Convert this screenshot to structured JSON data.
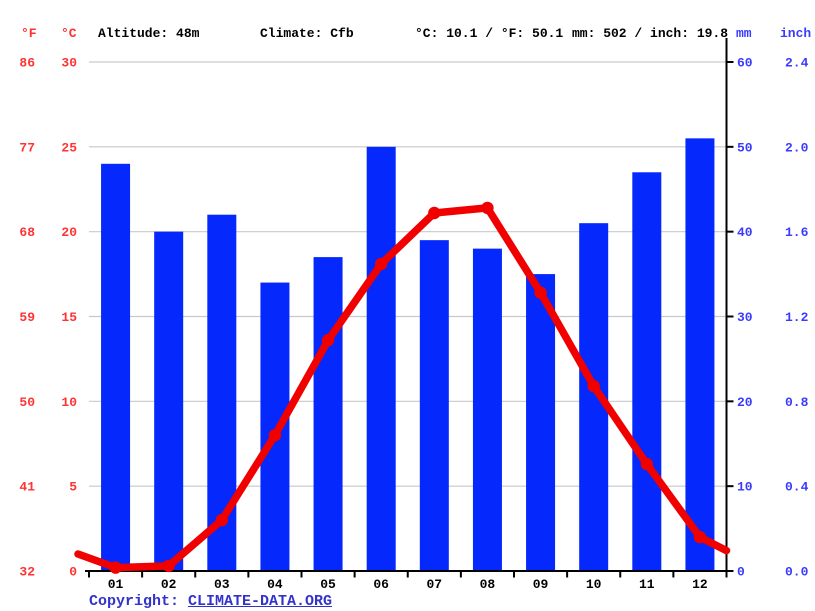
{
  "header": {
    "f_label": "°F",
    "c_label": "°C",
    "altitude": "Altitude: 48m",
    "climate": "Climate: Cfb",
    "temp_summary": "°C: 10.1 / °F: 50.1",
    "precip_summary": "mm: 502 / inch: 19.8",
    "mm_label": "mm",
    "inch_label": "inch"
  },
  "footer": {
    "copyright_prefix": "Copyright: ",
    "copyright_link": "CLIMATE-DATA.ORG"
  },
  "colors": {
    "bar_blue": "#0528fc",
    "line_red": "#f10000",
    "red_text": "#ff3333",
    "blue_text": "#3b3bff",
    "grid": "#c9c9c9",
    "axis": "#000000",
    "link_blue": "#3333cc"
  },
  "chart_data": {
    "type": "bar",
    "title": "Climate graph (climate-data.org style): monthly precipitation bars and temperature line",
    "categories": [
      "01",
      "02",
      "03",
      "04",
      "05",
      "06",
      "07",
      "08",
      "09",
      "10",
      "11",
      "12"
    ],
    "series": [
      {
        "name": "precipitation_mm",
        "type": "bar",
        "values": [
          48,
          40,
          42,
          34,
          37,
          50,
          39,
          38,
          35,
          41,
          47,
          51
        ]
      },
      {
        "name": "temperature_c",
        "type": "line",
        "values": [
          0.2,
          0.3,
          3.0,
          8.0,
          13.6,
          18.1,
          21.1,
          21.4,
          16.4,
          10.9,
          6.3,
          2.0
        ]
      }
    ],
    "line_edge_extension_c": {
      "left": 1.0,
      "right": 1.2
    },
    "left_axis_f_ticks": [
      "86",
      "77",
      "68",
      "59",
      "50",
      "41",
      "32"
    ],
    "left_axis_c_ticks": [
      "30",
      "25",
      "20",
      "15",
      "10",
      "5",
      "0"
    ],
    "right_axis_mm_ticks": [
      "60",
      "50",
      "40",
      "30",
      "20",
      "10",
      "0"
    ],
    "right_axis_inch_ticks": [
      "2.4",
      "2.0",
      "1.6",
      "1.2",
      "0.8",
      "0.4",
      "0.0"
    ],
    "temp_axis_range_c": [
      0,
      30
    ],
    "precip_axis_range_mm": [
      0,
      60
    ],
    "annual_mean_temp_c": 10.1,
    "annual_precip_mm": 502,
    "grid": true,
    "legend": false
  }
}
